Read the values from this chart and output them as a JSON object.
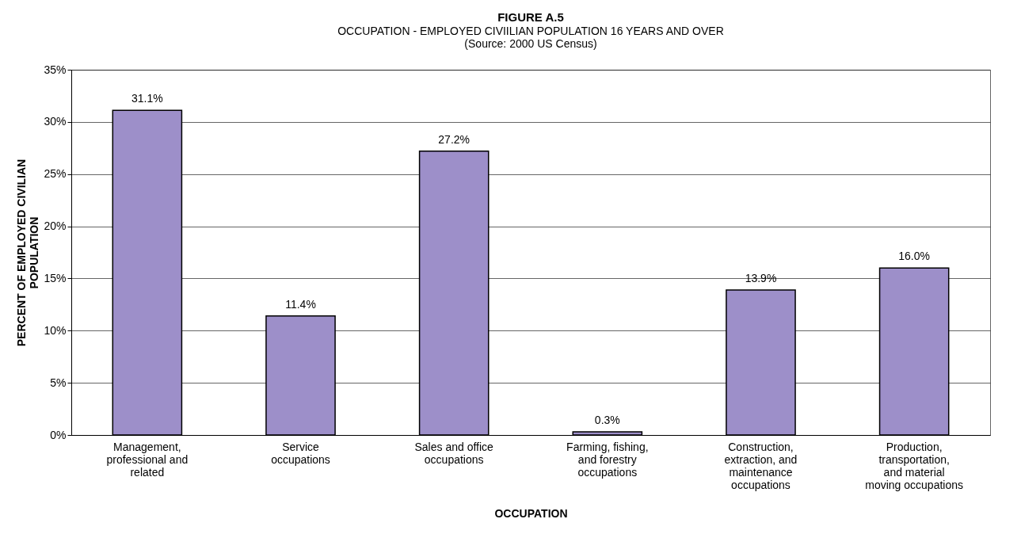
{
  "chart_data": {
    "type": "bar",
    "title": "FIGURE A.5",
    "subtitle": "OCCUPATION  - EMPLOYED CIVIILIAN POPULATION 16 YEARS AND OVER",
    "annotations": [
      "(Source:  2000 US Census)"
    ],
    "xlabel": "OCCUPATION",
    "ylabel": "PERCENT OF EMPLOYED CIVILIAN POPULATION",
    "categories": [
      "Management, professional and related",
      "Service occupations",
      "Sales and office occupations",
      "Farming, fishing, and forestry occupations",
      "Construction, extraction, and maintenance occupations",
      "Production, transportation, and material moving occupations"
    ],
    "values": [
      31.1,
      11.4,
      27.2,
      0.3,
      13.9,
      16.0
    ],
    "value_labels": [
      "31.1%",
      "11.4%",
      "27.2%",
      "0.3%",
      "13.9%",
      "16.0%"
    ],
    "color": "#9d8fc9",
    "ylim": [
      0,
      35
    ],
    "yticks": [
      {
        "value": 0,
        "label": "0%"
      },
      {
        "value": 5,
        "label": "5%"
      },
      {
        "value": 10,
        "label": "10%"
      },
      {
        "value": 15,
        "label": "15%"
      },
      {
        "value": 20,
        "label": "20%"
      },
      {
        "value": 25,
        "label": "25%"
      },
      {
        "value": 30,
        "label": "30%"
      },
      {
        "value": 35,
        "label": "35%"
      }
    ],
    "grid": "y"
  }
}
